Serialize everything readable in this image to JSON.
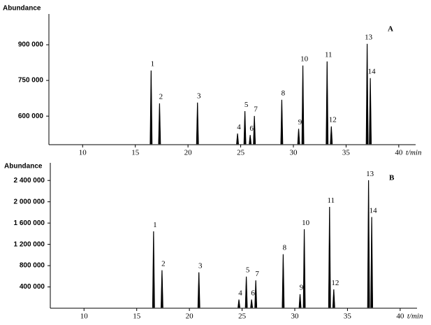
{
  "chart_data": [
    {
      "type": "chromatogram",
      "panel_label": "A",
      "ylabel": "Abundance",
      "xlabel": "t/min",
      "color": "#000000",
      "xlim": [
        6.8,
        41.6
      ],
      "xticks": [
        10,
        15,
        20,
        25,
        30,
        35,
        40
      ],
      "ylim": [
        480000,
        1000000
      ],
      "yticks": [
        {
          "value": 600000,
          "label": "600 000"
        },
        {
          "value": 750000,
          "label": "750 000"
        },
        {
          "value": 900000,
          "label": "900 000"
        }
      ],
      "labels": [
        "1",
        "2",
        "3",
        "4",
        "5",
        "6",
        "7",
        "8",
        "9",
        "10",
        "11",
        "12",
        "13",
        "14"
      ],
      "x": [
        16.5,
        17.3,
        20.9,
        24.7,
        25.4,
        25.9,
        26.3,
        28.9,
        30.5,
        30.9,
        33.2,
        33.6,
        37.0,
        37.3
      ],
      "values": [
        791000,
        653000,
        656000,
        526000,
        620000,
        520000,
        600000,
        668000,
        546000,
        812000,
        829000,
        556000,
        903000,
        759000
      ]
    },
    {
      "type": "chromatogram",
      "panel_label": "B",
      "ylabel": "Abundance",
      "xlabel": "t/min",
      "color": "#000000",
      "xlim": [
        6.8,
        41.6
      ],
      "xticks": [
        10,
        15,
        20,
        25,
        30,
        35,
        40
      ],
      "ylim": [
        0,
        2600000
      ],
      "yticks": [
        {
          "value": 400000,
          "label": "400 000"
        },
        {
          "value": 800000,
          "label": "800 000"
        },
        {
          "value": 1200000,
          "label": "1 200 000"
        },
        {
          "value": 1600000,
          "label": "1 600 000"
        },
        {
          "value": 2000000,
          "label": "2 000 000"
        },
        {
          "value": 2400000,
          "label": "2 400 000"
        }
      ],
      "labels": [
        "1",
        "2",
        "3",
        "4",
        "5",
        "6",
        "7",
        "8",
        "9",
        "10",
        "11",
        "12",
        "13",
        "14"
      ],
      "x": [
        16.6,
        17.4,
        20.9,
        24.7,
        25.4,
        25.9,
        26.3,
        28.9,
        30.5,
        30.9,
        33.3,
        33.7,
        37.0,
        37.3
      ],
      "values": [
        1440000,
        710000,
        670000,
        160000,
        590000,
        160000,
        520000,
        1010000,
        260000,
        1480000,
        1900000,
        350000,
        2400000,
        1710000
      ]
    }
  ]
}
